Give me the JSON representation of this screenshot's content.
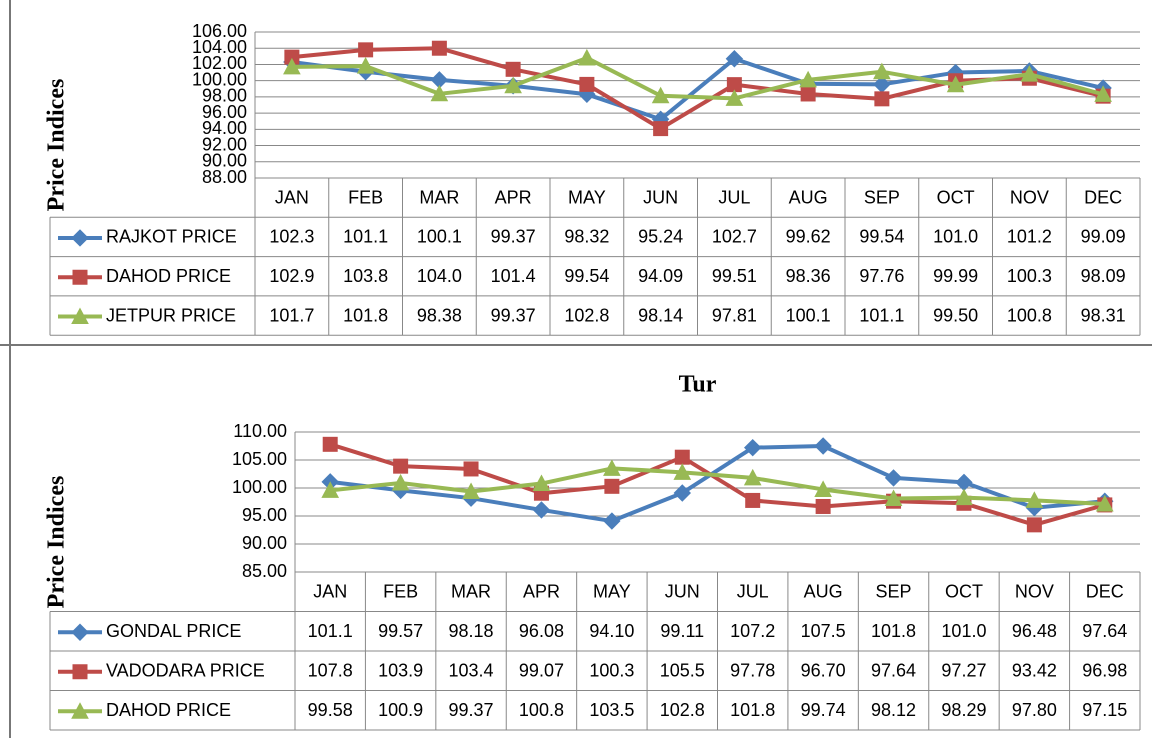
{
  "chart_data": [
    {
      "type": "line",
      "y_label": "Price Indices",
      "categories": [
        "JAN",
        "FEB",
        "MAR",
        "APR",
        "MAY",
        "JUN",
        "JUL",
        "AUG",
        "SEP",
        "OCT",
        "NOV",
        "DEC"
      ],
      "ylim": [
        88,
        106
      ],
      "yticks": [
        {
          "value": 88,
          "label": "88.00"
        },
        {
          "value": 90,
          "label": "90.00"
        },
        {
          "value": 92,
          "label": "92.00"
        },
        {
          "value": 94,
          "label": "94.00"
        },
        {
          "value": 96,
          "label": "96.00"
        },
        {
          "value": 98,
          "label": "98.00"
        },
        {
          "value": 100,
          "label": "100.00"
        },
        {
          "value": 102,
          "label": "102.00"
        },
        {
          "value": 104,
          "label": "104.00"
        },
        {
          "value": 106,
          "label": "106.00"
        }
      ],
      "grid": true,
      "series": [
        {
          "name": "RAJKOT PRICE",
          "color": "#4a7ebb",
          "marker": "diamond",
          "values": [
            102.3,
            101.1,
            100.1,
            99.37,
            98.32,
            95.24,
            102.7,
            99.62,
            99.54,
            101.0,
            101.2,
            99.09
          ],
          "value_labels": [
            "102.3",
            "101.1",
            "100.1",
            "99.37",
            "98.32",
            "95.24",
            "102.7",
            "99.62",
            "99.54",
            "101.0",
            "101.2",
            "99.09"
          ]
        },
        {
          "name": "DAHOD PRICE",
          "color": "#be4b48",
          "marker": "square",
          "values": [
            102.9,
            103.8,
            104.0,
            101.4,
            99.54,
            94.09,
            99.51,
            98.36,
            97.76,
            99.99,
            100.3,
            98.09
          ],
          "value_labels": [
            "102.9",
            "103.8",
            "104.0",
            "101.4",
            "99.54",
            "94.09",
            "99.51",
            "98.36",
            "97.76",
            "99.99",
            "100.3",
            "98.09"
          ]
        },
        {
          "name": "JETPUR PRICE",
          "color": "#98b954",
          "marker": "triangle",
          "values": [
            101.7,
            101.8,
            98.38,
            99.37,
            102.8,
            98.14,
            97.81,
            100.1,
            101.1,
            99.5,
            100.8,
            98.31
          ],
          "value_labels": [
            "101.7",
            "101.8",
            "98.38",
            "99.37",
            "102.8",
            "98.14",
            "97.81",
            "100.1",
            "101.1",
            "99.50",
            "100.8",
            "98.31"
          ]
        }
      ]
    },
    {
      "type": "line",
      "title": "Tur",
      "y_label": "Price Indices",
      "categories": [
        "JAN",
        "FEB",
        "MAR",
        "APR",
        "MAY",
        "JUN",
        "JUL",
        "AUG",
        "SEP",
        "OCT",
        "NOV",
        "DEC"
      ],
      "ylim": [
        85,
        110
      ],
      "yticks": [
        {
          "value": 85,
          "label": "85.00"
        },
        {
          "value": 90,
          "label": "90.00"
        },
        {
          "value": 95,
          "label": "95.00"
        },
        {
          "value": 100,
          "label": "100.00"
        },
        {
          "value": 105,
          "label": "105.00"
        },
        {
          "value": 110,
          "label": "110.00"
        }
      ],
      "grid": true,
      "series": [
        {
          "name": "GONDAL PRICE",
          "color": "#4a7ebb",
          "marker": "diamond",
          "values": [
            101.1,
            99.57,
            98.18,
            96.08,
            94.1,
            99.11,
            107.2,
            107.5,
            101.8,
            101.0,
            96.48,
            97.64
          ],
          "value_labels": [
            "101.1",
            "99.57",
            "98.18",
            "96.08",
            "94.10",
            "99.11",
            "107.2",
            "107.5",
            "101.8",
            "101.0",
            "96.48",
            "97.64"
          ]
        },
        {
          "name": "VADODARA PRICE",
          "color": "#be4b48",
          "marker": "square",
          "values": [
            107.8,
            103.9,
            103.4,
            99.07,
            100.3,
            105.5,
            97.78,
            96.7,
            97.64,
            97.27,
            93.42,
            96.98
          ],
          "value_labels": [
            "107.8",
            "103.9",
            "103.4",
            "99.07",
            "100.3",
            "105.5",
            "97.78",
            "96.70",
            "97.64",
            "97.27",
            "93.42",
            "96.98"
          ]
        },
        {
          "name": "DAHOD PRICE",
          "color": "#98b954",
          "marker": "triangle",
          "values": [
            99.58,
            100.9,
            99.37,
            100.8,
            103.5,
            102.8,
            101.8,
            99.74,
            98.12,
            98.29,
            97.8,
            97.15
          ],
          "value_labels": [
            "99.58",
            "100.9",
            "99.37",
            "100.8",
            "103.5",
            "102.8",
            "101.8",
            "99.74",
            "98.12",
            "98.29",
            "97.80",
            "97.15"
          ]
        }
      ]
    }
  ]
}
